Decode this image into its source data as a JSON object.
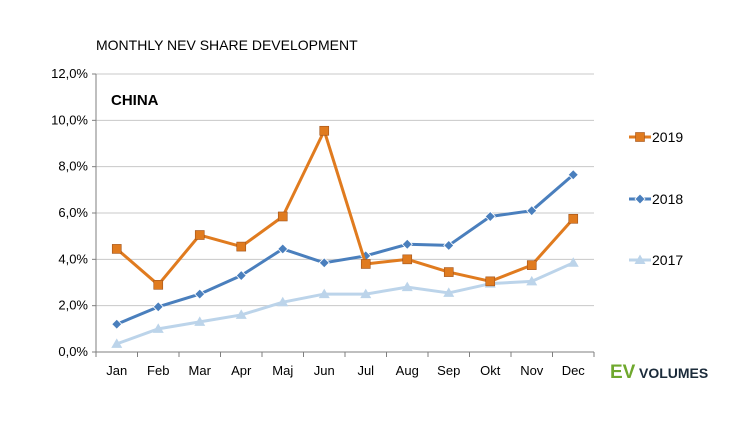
{
  "chart_data": {
    "type": "line",
    "title": "MONTHLY NEV SHARE DEVELOPMENT",
    "annotation": "CHINA",
    "categories": [
      "Jan",
      "Feb",
      "Mar",
      "Apr",
      "Maj",
      "Jun",
      "Jul",
      "Aug",
      "Sep",
      "Okt",
      "Nov",
      "Dec"
    ],
    "y_ticks": [
      "0,0%",
      "2,0%",
      "4,0%",
      "6,0%",
      "8,0%",
      "10,0%",
      "12,0%"
    ],
    "ylim": [
      0,
      12
    ],
    "grid": true,
    "legend_position": "right",
    "series": [
      {
        "name": "2019",
        "color": "#e07b1f",
        "marker": "square",
        "values": [
          4.45,
          2.9,
          5.05,
          4.55,
          5.85,
          9.55,
          3.8,
          4.0,
          3.45,
          3.05,
          3.75,
          5.75
        ]
      },
      {
        "name": "2018",
        "color": "#4a7fbd",
        "marker": "diamond",
        "values": [
          1.2,
          1.95,
          2.5,
          3.3,
          4.45,
          3.85,
          4.15,
          4.65,
          4.6,
          5.85,
          6.1,
          7.65
        ]
      },
      {
        "name": "2017",
        "color": "#bcd4ea",
        "marker": "triangle",
        "values": [
          0.35,
          1.0,
          1.3,
          1.6,
          2.15,
          2.5,
          2.5,
          2.8,
          2.55,
          2.95,
          3.05,
          3.85
        ]
      }
    ]
  },
  "logo": {
    "ev": "EV",
    "volumes": "VOLUMES"
  }
}
